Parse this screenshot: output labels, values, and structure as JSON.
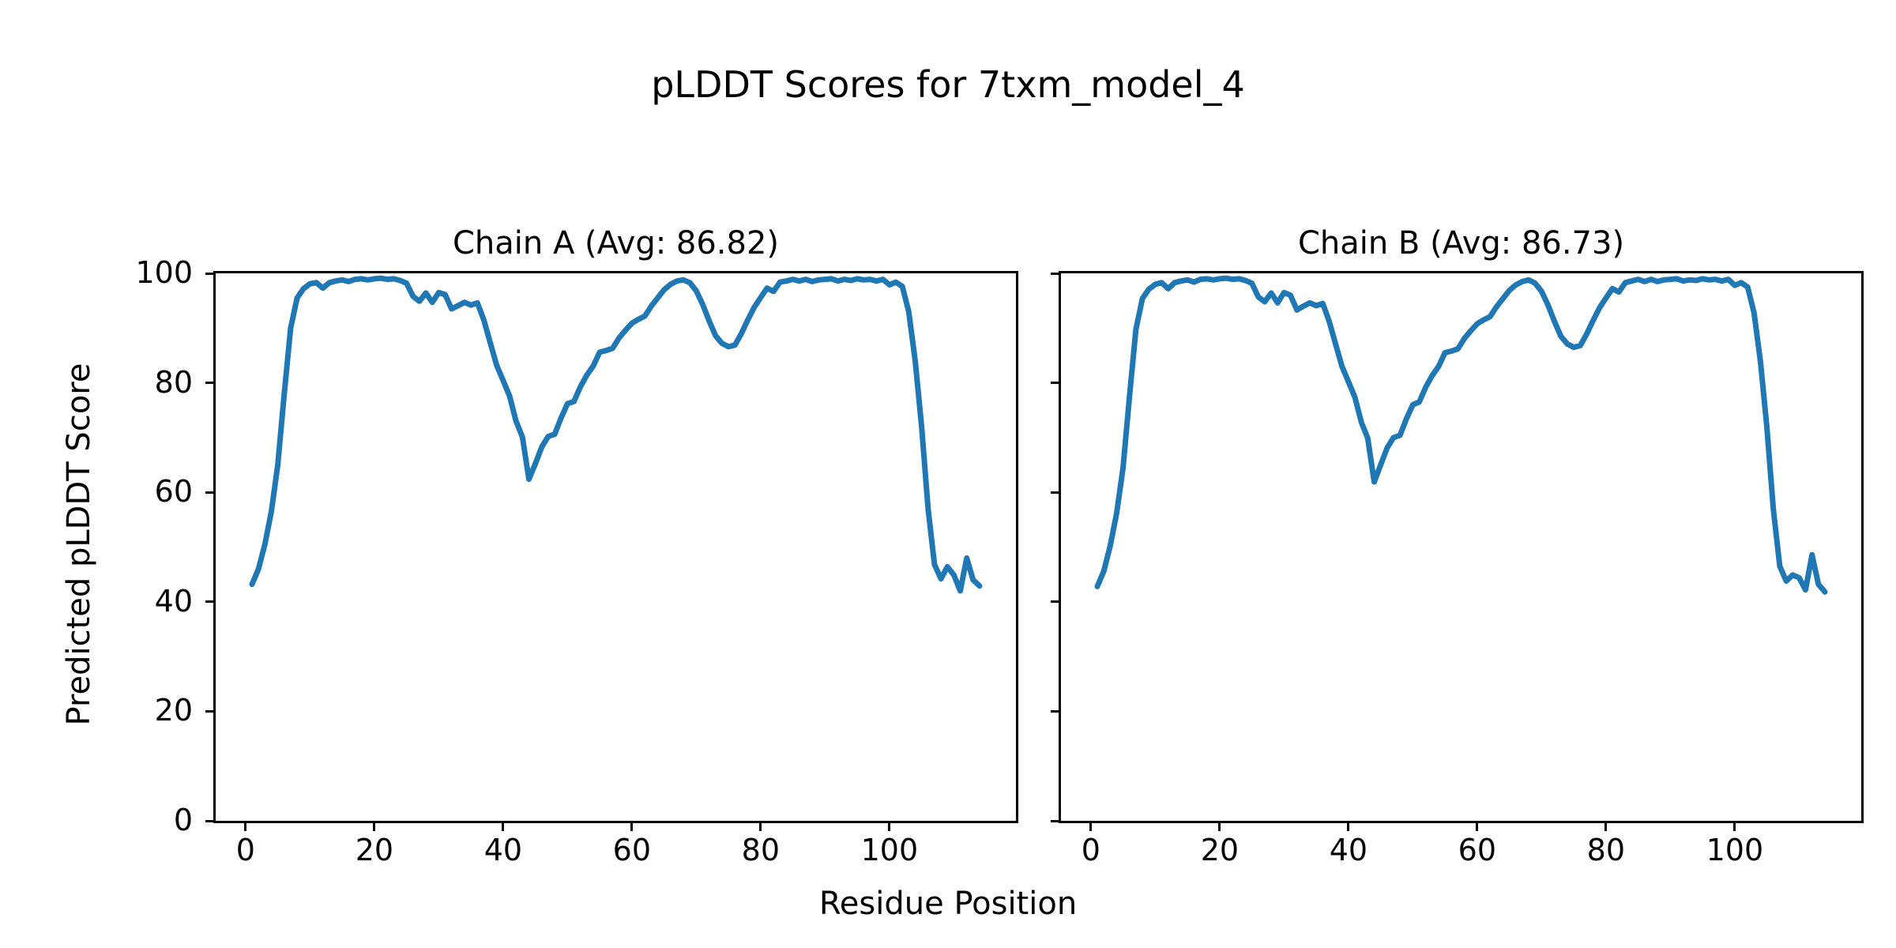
{
  "figure": {
    "title": "pLDDT Scores for 7txm_model_4",
    "xlabel": "Residue Position",
    "ylabel": "Predicted pLDDT Score",
    "background_color": "#ffffff",
    "line_color": "#1f77b4",
    "text_color": "#000000"
  },
  "chart_data": [
    {
      "type": "line",
      "chain": "A",
      "title": "Chain A (Avg: 86.82)",
      "avg": 86.82,
      "xlabel": "Residue Position",
      "ylabel": "Predicted pLDDT Score",
      "xlim": [
        -4.65,
        119.65
      ],
      "ylim": [
        0,
        100
      ],
      "xticks": [
        0,
        20,
        40,
        60,
        80,
        100
      ],
      "yticks": [
        0,
        20,
        40,
        60,
        80,
        100
      ],
      "show_ytick_labels": true,
      "grid": false,
      "legend": "none",
      "x_start": 1,
      "x_end": 114,
      "values": [
        43.2,
        46.0,
        50.5,
        56.5,
        65.0,
        78.0,
        90.0,
        95.5,
        97.2,
        98.1,
        98.3,
        97.3,
        98.3,
        98.6,
        98.8,
        98.5,
        98.9,
        99.0,
        98.8,
        99.0,
        99.1,
        98.9,
        99.0,
        98.7,
        98.2,
        95.8,
        94.9,
        96.4,
        94.7,
        96.5,
        96.1,
        93.5,
        94.1,
        94.7,
        94.2,
        94.6,
        91.5,
        87.3,
        83.2,
        80.4,
        77.6,
        73.0,
        70.1,
        62.4,
        65.2,
        68.3,
        70.2,
        70.6,
        73.6,
        76.2,
        76.6,
        79.3,
        81.4,
        83.1,
        85.6,
        85.9,
        86.3,
        88.2,
        89.6,
        90.9,
        91.6,
        92.2,
        94.0,
        95.5,
        97.0,
        98.0,
        98.6,
        98.8,
        98.3,
        96.8,
        94.3,
        91.3,
        88.6,
        87.2,
        86.6,
        86.9,
        89.0,
        91.5,
        93.8,
        95.6,
        97.3,
        96.7,
        98.4,
        98.6,
        98.9,
        98.6,
        98.9,
        98.5,
        98.8,
        98.9,
        99.0,
        98.6,
        98.9,
        98.7,
        99.0,
        98.8,
        98.9,
        98.6,
        98.9,
        97.9,
        98.4,
        97.6,
        93.0,
        84.0,
        72.0,
        57.0,
        46.8,
        44.2,
        46.4,
        44.9,
        42.0,
        48.0,
        44.0,
        42.9
      ]
    },
    {
      "type": "line",
      "chain": "B",
      "title": "Chain B (Avg: 86.73)",
      "avg": 86.73,
      "xlabel": "Residue Position",
      "ylabel": "Predicted pLDDT Score",
      "xlim": [
        -4.65,
        119.65
      ],
      "ylim": [
        0,
        100
      ],
      "xticks": [
        0,
        20,
        40,
        60,
        80,
        100
      ],
      "yticks": [
        0,
        20,
        40,
        60,
        80,
        100
      ],
      "show_ytick_labels": false,
      "grid": false,
      "legend": "none",
      "x_start": 1,
      "x_end": 114,
      "values": [
        42.8,
        45.6,
        50.2,
        56.2,
        64.5,
        77.6,
        89.8,
        95.4,
        97.1,
        98.0,
        98.3,
        97.2,
        98.3,
        98.6,
        98.8,
        98.4,
        98.9,
        99.0,
        98.8,
        99.0,
        99.1,
        98.9,
        99.0,
        98.7,
        98.2,
        95.7,
        94.8,
        96.4,
        94.6,
        96.5,
        96.0,
        93.3,
        94.0,
        94.6,
        94.1,
        94.5,
        91.3,
        87.1,
        83.0,
        80.2,
        77.4,
        72.8,
        69.9,
        61.9,
        65.0,
        68.1,
        70.0,
        70.4,
        73.4,
        76.0,
        76.5,
        79.2,
        81.3,
        83.0,
        85.5,
        85.8,
        86.2,
        88.1,
        89.5,
        90.8,
        91.5,
        92.1,
        93.9,
        95.4,
        96.9,
        97.9,
        98.5,
        98.8,
        98.2,
        96.7,
        94.2,
        91.2,
        88.5,
        87.1,
        86.5,
        86.8,
        88.9,
        91.4,
        93.7,
        95.5,
        97.2,
        96.6,
        98.3,
        98.6,
        98.9,
        98.5,
        98.9,
        98.5,
        98.8,
        98.9,
        99.0,
        98.6,
        98.8,
        98.7,
        99.0,
        98.8,
        98.9,
        98.6,
        98.9,
        97.8,
        98.3,
        97.5,
        92.8,
        83.8,
        71.8,
        56.8,
        46.5,
        43.8,
        44.9,
        44.4,
        42.2,
        48.6,
        43.2,
        41.8
      ]
    }
  ]
}
